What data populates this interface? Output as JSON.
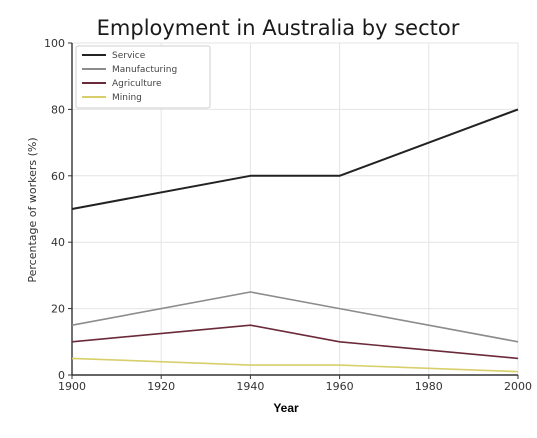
{
  "chart_data": {
    "type": "line",
    "title": "Employment in Australia by sector",
    "xlabel": "Year",
    "ylabel": "Percentage of workers (%)",
    "xlim": [
      1900,
      2000
    ],
    "ylim": [
      0,
      100
    ],
    "x_ticks": [
      1900,
      1920,
      1940,
      1960,
      1980,
      2000
    ],
    "y_ticks": [
      0,
      20,
      40,
      60,
      80,
      100
    ],
    "grid": true,
    "legend_position": "top-left",
    "x": [
      1900,
      1940,
      1960,
      2000
    ],
    "series": [
      {
        "name": "Service",
        "color": "#222222",
        "values": [
          50,
          60,
          60,
          80
        ]
      },
      {
        "name": "Manufacturing",
        "color": "#8c8c8c",
        "values": [
          15,
          25,
          20,
          10
        ]
      },
      {
        "name": "Agriculture",
        "color": "#6b2a3a",
        "values": [
          10,
          15,
          10,
          5
        ]
      },
      {
        "name": "Mining",
        "color": "#d8cf6a",
        "values": [
          5,
          3,
          3,
          1
        ]
      }
    ]
  }
}
